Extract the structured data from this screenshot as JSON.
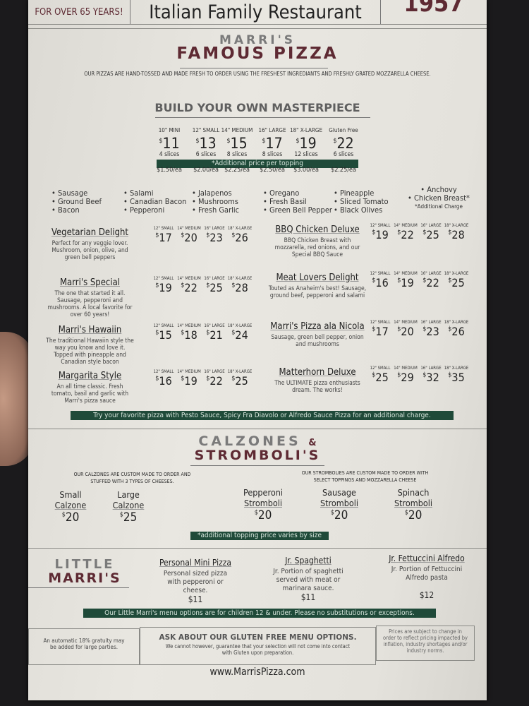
{
  "header": {
    "tagline": "FOR OVER 65 YEARS!",
    "restaurant": "Italian Family Restaurant",
    "year": "1957"
  },
  "pizza": {
    "title_top": "MARRI'S",
    "title_bottom": "FAMOUS PIZZA",
    "intro": "OUR PIZZAS ARE HAND-TOSSED AND MADE FRESH TO ORDER USING THE FRESHEST INGREDIANTS AND FRESHLY GRATED MOZZARELLA CHEESE.",
    "byo_title": "BUILD YOUR OWN MASTERPIECE",
    "sizes": [
      {
        "label": "10\" MINI",
        "price": "11",
        "slices": "4 slices",
        "topping": "$1.50/ea"
      },
      {
        "label": "12\" SMALL",
        "price": "13",
        "slices": "6 slices",
        "topping": "$2.00/ea"
      },
      {
        "label": "14\" MEDIUM",
        "price": "15",
        "slices": "8 slices",
        "topping": "$2.25/ea"
      },
      {
        "label": "16\" LARGE",
        "price": "17",
        "slices": "8 slices",
        "topping": "$2.50/ea"
      },
      {
        "label": "18\" X-LARGE",
        "price": "19",
        "slices": "12 slices",
        "topping": "$3.00/ea"
      },
      {
        "label": "Gluten Free",
        "price": "22",
        "slices": "6 slices",
        "topping": "$2.25/ea"
      }
    ],
    "topping_banner": "*Additional price per topping",
    "toppings": [
      [
        "• Sausage",
        "• Ground Beef",
        "• Bacon"
      ],
      [
        "• Salami",
        "• Canadian Bacon",
        "• Pepperoni"
      ],
      [
        "• Jalapenos",
        "• Mushrooms",
        "• Fresh Garlic"
      ],
      [
        "• Oregano",
        "• Fresh Basil",
        "• Green Bell Pepper"
      ],
      [
        "• Pineapple",
        "• Sliced Tomato",
        "• Black Olives"
      ],
      [
        "• Anchovy",
        "• Chicken Breast*",
        "*Additional Charge"
      ]
    ],
    "size_labels": [
      "12\" SMALL",
      "14\" MEDIUM",
      "16\" LARGE",
      "18\" X-LARGE"
    ],
    "specialties": [
      {
        "name": "Vegetarian Delight",
        "desc": "Perfect for any veggie lover. Mushroom, onion, olive, and green bell peppers",
        "prices": [
          "17",
          "20",
          "23",
          "26"
        ]
      },
      {
        "name": "BBQ Chicken Deluxe",
        "desc": "BBQ Chicken Breast with mozzarella, red onions, and our Special BBQ Sauce",
        "prices": [
          "19",
          "22",
          "25",
          "28"
        ]
      },
      {
        "name": "Marri's Special",
        "desc": "The one that started it all. Sausage, pepperoni and mushrooms. A local favorite for over 60 years!",
        "prices": [
          "19",
          "22",
          "25",
          "28"
        ]
      },
      {
        "name": "Meat Lovers Delight",
        "desc": "Touted as Anaheim's best! Sausage, ground beef, pepperoni and salami",
        "prices": [
          "16",
          "19",
          "22",
          "25"
        ]
      },
      {
        "name": "Marri's Hawaiin",
        "desc": "The traditional Hawaiin style the way you know and love it. Topped with pineapple and Canadian style bacon",
        "prices": [
          "15",
          "18",
          "21",
          "24"
        ]
      },
      {
        "name": "Marri's Pizza ala Nicola",
        "desc": "Sausage, green bell pepper, onion and mushrooms",
        "prices": [
          "17",
          "20",
          "23",
          "26"
        ]
      },
      {
        "name": "Margarita Style",
        "desc": "An all time classic. Fresh tomato, basil and garlic with Marri's pizza sauce",
        "prices": [
          "16",
          "19",
          "22",
          "25"
        ]
      },
      {
        "name": "Matterhorn Deluxe",
        "desc": "The ULTIMATE pizza enthusiasts dream. The works!",
        "prices": [
          "25",
          "29",
          "32",
          "35"
        ]
      }
    ],
    "sauce_banner": "Try your favorite pizza with Pesto Sauce, Spicy Fra Diavolo or Alfredo Sauce Pizza for an additional charge."
  },
  "calzones": {
    "title_top": "CALZONES",
    "amp": "&",
    "title_bottom": "STROMBOLI'S",
    "calzone_note": "OUR CALZONES ARE CUSTOM MADE TO ORDER AND STUFFED WITH 3 TYPES OF CHEESES.",
    "stromboli_note": "OUR STROMBOLIES ARE CUSTOM MADE TO ORDER WITH SELECT TOPPINGS AND MOZZARELLA CHEESE",
    "items": [
      {
        "l1": "Small",
        "l2": "Calzone",
        "price": "20"
      },
      {
        "l1": "Large",
        "l2": "Calzone",
        "price": "25"
      },
      {
        "l1": "Pepperoni",
        "l2": "Stromboli",
        "price": "20"
      },
      {
        "l1": "Sausage",
        "l2": "Stromboli",
        "price": "20"
      },
      {
        "l1": "Spinach",
        "l2": "Stromboli",
        "price": "20"
      }
    ],
    "banner": "*additional topping price varies by size"
  },
  "kids": {
    "title_top": "LITTLE",
    "title_bottom": "MARRI'S",
    "items": [
      {
        "name": "Personal Mini Pizza",
        "desc": "Personal sized pizza with pepperoni or cheese.",
        "price": "$11"
      },
      {
        "name": "Jr. Spaghetti",
        "desc": "Jr. Portion of spaghetti served with meat or marinara sauce.",
        "price": "$11"
      },
      {
        "name": "Jr. Fettuccini Alfredo",
        "desc": "Jr. Portion of Fettuccini Alfredo pasta",
        "price": "$12"
      }
    ],
    "banner": "Our Little Marri's menu options are for children 12 & under. Please no substitutions or exceptions."
  },
  "footer": {
    "gratuity": "An automatic 18% gratuity may be added for large parties.",
    "gf_title": "ASK ABOUT OUR GLUTEN FREE MENU OPTIONS.",
    "gf_note": "We cannot however, guarantee that your selection will not come into contact with Gluten upon preparation.",
    "prices_note": "Prices are subject to change in order to reflect pricing impacted by inflation, industry shortages and/or industry norms.",
    "website": "www.MarrisPizza.com"
  },
  "colors": {
    "maroon": "#5e2a33",
    "green": "#1f4a39",
    "paper": "#e6e4de"
  }
}
